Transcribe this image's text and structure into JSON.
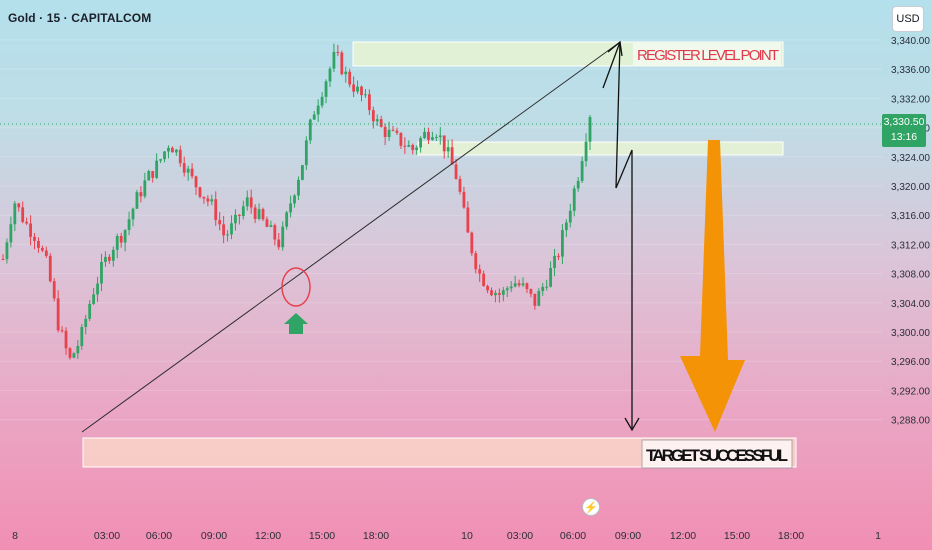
{
  "header": {
    "title": "Gold · 15 · CAPITALCOM",
    "currency_button": "USD"
  },
  "price_tag": {
    "price": "3,330.50",
    "countdown": "13:16"
  },
  "annotations": {
    "register_label": "REGISTER LEVEL POINT",
    "target_label": "TARGET SUCCESSFUL"
  },
  "colors": {
    "up": "#2fa464",
    "down": "#e8424d",
    "orange_arrow": "#f39305",
    "label_red": "#e03b4c"
  },
  "chart_data": {
    "type": "candlestick",
    "symbol": "Gold",
    "interval": "15",
    "y_axis": {
      "ticks": [
        "3,340.00",
        "3,336.00",
        "3,332.00",
        "3,328.00",
        "3,324.00",
        "3,320.00",
        "3,316.00",
        "3,312.00",
        "3,308.00",
        "3,304.00",
        "3,300.00",
        "3,296.00",
        "3,292.00",
        "3,288.00"
      ],
      "range": [
        3286,
        3342
      ]
    },
    "x_axis": {
      "ticks": [
        "8",
        "03:00",
        "06:00",
        "09:00",
        "12:00",
        "15:00",
        "18:00",
        "10",
        "03:00",
        "06:00",
        "09:00",
        "12:00",
        "15:00",
        "18:00",
        "1"
      ]
    },
    "close_path": [
      3310,
      3318,
      3315,
      3313,
      3309,
      3301,
      3296,
      3299,
      3305,
      3309,
      3312,
      3314,
      3318,
      3321,
      3323,
      3326,
      3324,
      3321,
      3319,
      3317,
      3313,
      3315,
      3318,
      3316,
      3314,
      3312,
      3318,
      3323,
      3330,
      3334,
      3338,
      3335,
      3333,
      3331,
      3328,
      3327,
      3326,
      3325,
      3327,
      3328,
      3325,
      3321,
      3313,
      3308,
      3306,
      3305,
      3307,
      3306,
      3304,
      3307,
      3310,
      3316,
      3322,
      3330
    ]
  }
}
